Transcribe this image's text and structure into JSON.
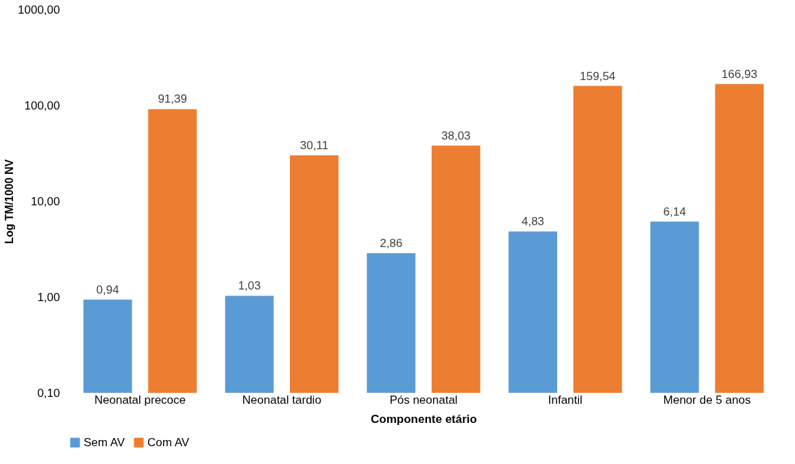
{
  "chart_data": {
    "type": "bar",
    "xlabel": "Componente etário",
    "ylabel": "Log TM/1000 NV",
    "categories": [
      "Neonatal precoce",
      "Neonatal tardio",
      "Pós neonatal",
      "Infantil",
      "Menor de 5 anos"
    ],
    "series": [
      {
        "name": "Sem AV",
        "color": "#5b9bd5",
        "values": [
          0.94,
          1.03,
          2.86,
          4.83,
          6.14
        ],
        "value_labels": [
          "0,94",
          "1,03",
          "2,86",
          "4,83",
          "6,14"
        ]
      },
      {
        "name": "Com AV",
        "color": "#ed7d31",
        "values": [
          91.39,
          30.11,
          38.03,
          159.54,
          166.93
        ],
        "value_labels": [
          "91,39",
          "30,11",
          "38,03",
          "159,54",
          "166,93"
        ]
      }
    ],
    "log": "y",
    "ylim": [
      0.1,
      1000
    ],
    "yticks": [
      {
        "value": 0.1,
        "label": "0,10"
      },
      {
        "value": 1,
        "label": "1,00"
      },
      {
        "value": 10,
        "label": "10,00"
      },
      {
        "value": 100,
        "label": "100,00"
      },
      {
        "value": 1000,
        "label": "1000,00"
      }
    ],
    "grid": false,
    "legend": "bottom"
  }
}
